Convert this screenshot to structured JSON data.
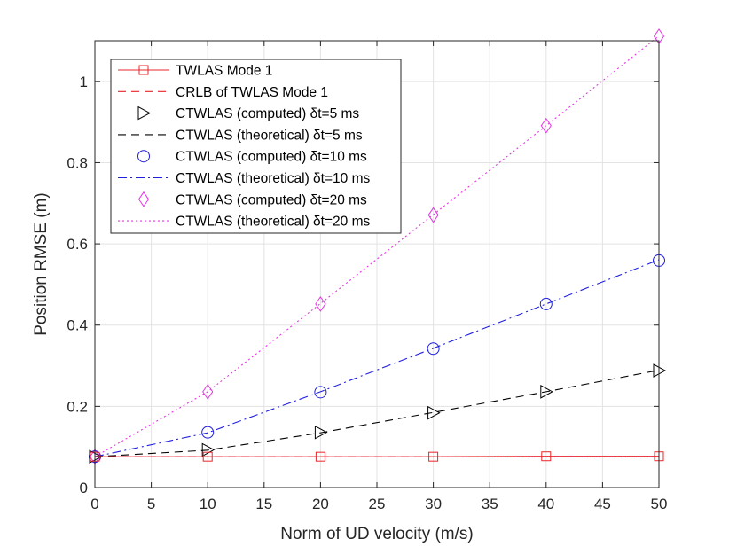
{
  "chart_data": {
    "type": "line",
    "title": "",
    "xlabel": "Norm of UD velocity (m/s)",
    "ylabel": "Position RMSE (m)",
    "xlim": [
      0,
      50
    ],
    "ylim": [
      0,
      1.1
    ],
    "xticks": [
      0,
      5,
      10,
      15,
      20,
      25,
      30,
      35,
      40,
      45,
      50
    ],
    "yticks": [
      0,
      0.2,
      0.4,
      0.6,
      0.8,
      1
    ],
    "ytick_labels": [
      "0",
      "0.2",
      "0.4",
      "0.6",
      "0.8",
      "1"
    ],
    "grid": true,
    "legend_position": "top-left",
    "series": [
      {
        "name": "TWLAS Mode 1",
        "color": "#e8262b",
        "line_style": "solid",
        "marker": "square",
        "x": [
          0,
          10,
          20,
          30,
          40,
          50
        ],
        "values": [
          0.076,
          0.076,
          0.076,
          0.076,
          0.077,
          0.077
        ]
      },
      {
        "name": "CRLB of TWLAS Mode 1",
        "color": "#e8262b",
        "line_style": "dashed",
        "marker": "none",
        "x": [
          0,
          10,
          20,
          30,
          40,
          50
        ],
        "values": [
          0.076,
          0.076,
          0.076,
          0.076,
          0.076,
          0.076
        ]
      },
      {
        "name": "CTWLAS (computed) δt=5 ms",
        "color": "#000000",
        "line_style": "none",
        "marker": "triangle-right",
        "x": [
          0,
          10,
          20,
          30,
          40,
          50
        ],
        "values": [
          0.076,
          0.093,
          0.136,
          0.184,
          0.236,
          0.288
        ]
      },
      {
        "name": "CTWLAS (theoretical) δt=5 ms",
        "color": "#000000",
        "line_style": "dashed",
        "marker": "none",
        "x": [
          0,
          10,
          20,
          30,
          40,
          50
        ],
        "values": [
          0.076,
          0.092,
          0.135,
          0.185,
          0.236,
          0.289
        ]
      },
      {
        "name": "CTWLAS (computed) δt=10 ms",
        "color": "#1f1fe0",
        "line_style": "none",
        "marker": "circle",
        "x": [
          0,
          10,
          20,
          30,
          40,
          50
        ],
        "values": [
          0.076,
          0.136,
          0.235,
          0.342,
          0.452,
          0.559
        ]
      },
      {
        "name": "CTWLAS (theoretical) δt=10 ms",
        "color": "#1f1fe0",
        "line_style": "dashdot",
        "marker": "none",
        "x": [
          0,
          10,
          20,
          30,
          40,
          50
        ],
        "values": [
          0.076,
          0.135,
          0.236,
          0.343,
          0.452,
          0.561
        ]
      },
      {
        "name": "CTWLAS (computed) δt=20 ms",
        "color": "#e536e5",
        "line_style": "none",
        "marker": "diamond",
        "x": [
          0,
          10,
          20,
          30,
          40,
          50
        ],
        "values": [
          0.076,
          0.236,
          0.452,
          0.671,
          0.891,
          1.111
        ]
      },
      {
        "name": "CTWLAS (theoretical) δt=20 ms",
        "color": "#e536e5",
        "line_style": "dotted",
        "marker": "none",
        "x": [
          0,
          10,
          20,
          30,
          40,
          50
        ],
        "values": [
          0.076,
          0.236,
          0.453,
          0.672,
          0.891,
          1.112
        ]
      }
    ]
  }
}
